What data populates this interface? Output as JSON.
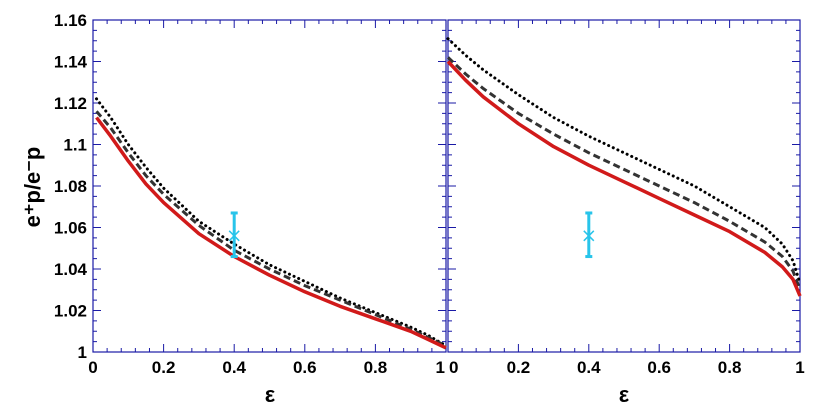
{
  "chart_data": [
    {
      "type": "line",
      "panel": "left",
      "xlabel": "ε",
      "ylabel": "e⁺p/e⁻p",
      "xlim": [
        0,
        1
      ],
      "ylim": [
        1,
        1.16
      ],
      "x_ticks": [
        "0",
        "0.2",
        "0.4",
        "0.6",
        "0.8",
        "1"
      ],
      "y_ticks": [
        "1",
        "1.02",
        "1.04",
        "1.06",
        "1.08",
        "1.1",
        "1.12",
        "1.14",
        "1.16"
      ],
      "series": [
        {
          "style": "dotted",
          "color": "#000000",
          "x": [
            0.01,
            0.05,
            0.1,
            0.15,
            0.2,
            0.3,
            0.4,
            0.5,
            0.6,
            0.7,
            0.8,
            0.9,
            0.95,
            1.0
          ],
          "y": [
            1.122,
            1.113,
            1.1,
            1.089,
            1.079,
            1.063,
            1.052,
            1.042,
            1.034,
            1.026,
            1.019,
            1.012,
            1.008,
            1.003
          ]
        },
        {
          "style": "dashed",
          "color": "#333333",
          "x": [
            0.01,
            0.05,
            0.1,
            0.15,
            0.2,
            0.3,
            0.4,
            0.5,
            0.6,
            0.7,
            0.8,
            0.9,
            0.95,
            1.0
          ],
          "y": [
            1.116,
            1.108,
            1.096,
            1.085,
            1.076,
            1.061,
            1.049,
            1.04,
            1.032,
            1.025,
            1.018,
            1.011,
            1.007,
            1.003
          ]
        },
        {
          "style": "solid",
          "color": "#d11a1a",
          "x": [
            0.01,
            0.05,
            0.1,
            0.15,
            0.2,
            0.3,
            0.4,
            0.5,
            0.6,
            0.7,
            0.8,
            0.9,
            0.95,
            1.0
          ],
          "y": [
            1.113,
            1.104,
            1.092,
            1.081,
            1.072,
            1.057,
            1.046,
            1.037,
            1.029,
            1.022,
            1.016,
            1.01,
            1.006,
            1.002
          ]
        }
      ],
      "data_point": {
        "x": 0.4,
        "y": 1.056,
        "y_err_low": 1.046,
        "y_err_high": 1.067,
        "color": "#28c4ea"
      }
    },
    {
      "type": "line",
      "panel": "right",
      "xlabel": "ε",
      "xlim": [
        0,
        1
      ],
      "ylim": [
        1,
        1.16
      ],
      "x_ticks": [
        "0",
        "0.2",
        "0.4",
        "0.6",
        "0.8",
        "1"
      ],
      "series": [
        {
          "style": "dotted",
          "color": "#000000",
          "x": [
            0.0,
            0.05,
            0.1,
            0.2,
            0.3,
            0.4,
            0.5,
            0.6,
            0.7,
            0.8,
            0.9,
            0.95,
            0.98,
            1.0
          ],
          "y": [
            1.151,
            1.143,
            1.136,
            1.124,
            1.113,
            1.104,
            1.096,
            1.088,
            1.08,
            1.07,
            1.06,
            1.052,
            1.044,
            1.033
          ]
        },
        {
          "style": "dashed",
          "color": "#333333",
          "x": [
            0.0,
            0.05,
            0.1,
            0.2,
            0.3,
            0.4,
            0.5,
            0.6,
            0.7,
            0.8,
            0.9,
            0.95,
            0.98,
            1.0
          ],
          "y": [
            1.142,
            1.134,
            1.127,
            1.115,
            1.105,
            1.096,
            1.088,
            1.08,
            1.072,
            1.063,
            1.053,
            1.046,
            1.039,
            1.03
          ]
        },
        {
          "style": "solid",
          "color": "#d11a1a",
          "x": [
            0.0,
            0.05,
            0.1,
            0.2,
            0.3,
            0.4,
            0.5,
            0.6,
            0.7,
            0.8,
            0.9,
            0.95,
            0.98,
            1.0
          ],
          "y": [
            1.14,
            1.131,
            1.123,
            1.11,
            1.099,
            1.09,
            1.082,
            1.074,
            1.066,
            1.058,
            1.048,
            1.041,
            1.035,
            1.027
          ]
        }
      ],
      "data_point": {
        "x": 0.4,
        "y": 1.056,
        "y_err_low": 1.046,
        "y_err_high": 1.067,
        "color": "#28c4ea"
      }
    }
  ]
}
